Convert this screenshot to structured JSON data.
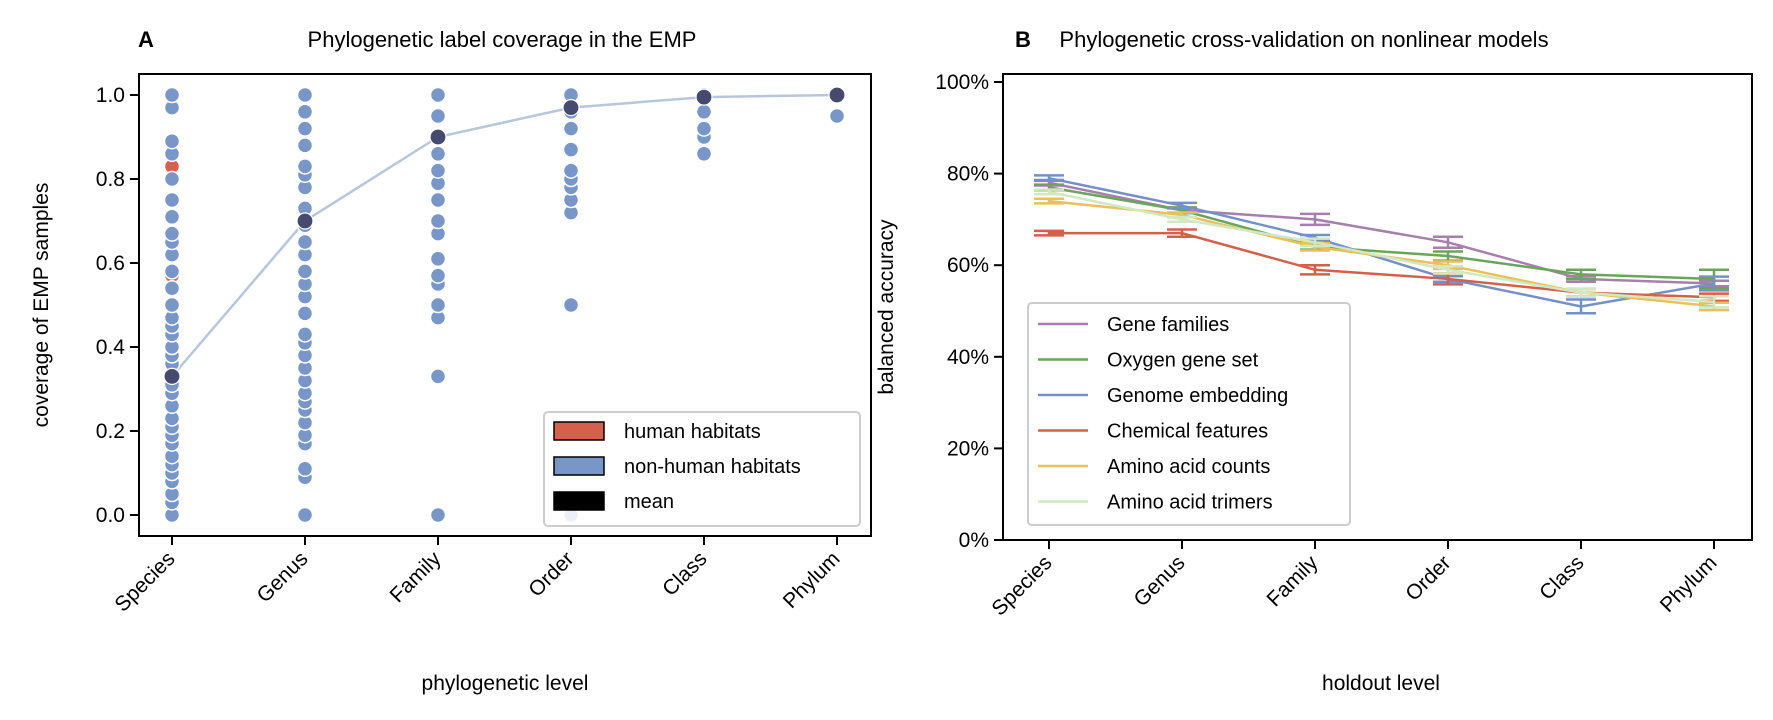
{
  "chart_data": [
    {
      "panel": "A",
      "type": "scatter",
      "title": "Phylogenetic label coverage in the EMP",
      "xlabel": "phylogenetic level",
      "ylabel": "coverage of EMP samples",
      "categories": [
        "Species",
        "Genus",
        "Family",
        "Order",
        "Class",
        "Phylum"
      ],
      "ylim": [
        -0.05,
        1.05
      ],
      "yticks": [
        0.0,
        0.2,
        0.4,
        0.6,
        0.8,
        1.0
      ],
      "ytick_labels": [
        "0.0",
        "0.2",
        "0.4",
        "0.6",
        "0.8",
        "1.0"
      ],
      "legend": {
        "position": "lower-right",
        "entries": [
          {
            "label": "human habitats",
            "color": "#d6604d"
          },
          {
            "label": "non-human habitats",
            "color": "#7896c8"
          },
          {
            "label": "mean",
            "color": "#000000"
          }
        ]
      },
      "colors": {
        "human": "#d6604d",
        "nonhuman": "#7896c8",
        "mean_point": "#454a6e",
        "mean_line": "#b8c6dd"
      },
      "human_points": [
        {
          "category": "Species",
          "values": [
            0.57,
            0.83
          ]
        }
      ],
      "nonhuman_points": [
        {
          "category": "Species",
          "values": [
            0.0,
            0.03,
            0.05,
            0.08,
            0.1,
            0.12,
            0.14,
            0.17,
            0.19,
            0.21,
            0.23,
            0.26,
            0.29,
            0.31,
            0.33,
            0.36,
            0.38,
            0.4,
            0.43,
            0.45,
            0.47,
            0.5,
            0.54,
            0.58,
            0.62,
            0.65,
            0.67,
            0.71,
            0.75,
            0.8,
            0.86,
            0.89,
            0.97,
            1.0
          ]
        },
        {
          "category": "Genus",
          "values": [
            0.0,
            0.09,
            0.11,
            0.17,
            0.19,
            0.22,
            0.25,
            0.27,
            0.29,
            0.32,
            0.35,
            0.38,
            0.41,
            0.43,
            0.48,
            0.52,
            0.55,
            0.58,
            0.62,
            0.65,
            0.69,
            0.73,
            0.78,
            0.81,
            0.83,
            0.88,
            0.92,
            0.96,
            1.0
          ]
        },
        {
          "category": "Family",
          "values": [
            0.0,
            0.33,
            0.47,
            0.5,
            0.55,
            0.57,
            0.61,
            0.67,
            0.7,
            0.75,
            0.79,
            0.82,
            0.86,
            0.9,
            0.95,
            1.0
          ]
        },
        {
          "category": "Order",
          "values": [
            0.0,
            0.5,
            0.72,
            0.75,
            0.78,
            0.8,
            0.82,
            0.87,
            0.92,
            0.96,
            1.0
          ]
        },
        {
          "category": "Class",
          "values": [
            0.86,
            0.9,
            0.92,
            0.96,
            1.0
          ]
        },
        {
          "category": "Phylum",
          "values": [
            0.95,
            1.0
          ]
        }
      ],
      "mean": [
        0.33,
        0.7,
        0.9,
        0.97,
        0.995,
        1.0
      ]
    },
    {
      "panel": "B",
      "type": "line",
      "title": "Phylogenetic cross-validation on nonlinear models",
      "xlabel": "holdout level",
      "ylabel": "balanced accuracy",
      "categories": [
        "Species",
        "Genus",
        "Family",
        "Order",
        "Class",
        "Phylum"
      ],
      "ylim": [
        0,
        100
      ],
      "yticks": [
        0,
        20,
        40,
        60,
        80,
        100
      ],
      "ytick_labels": [
        "0%",
        "20%",
        "40%",
        "60%",
        "80%",
        "100%"
      ],
      "legend": {
        "position": "lower-left"
      },
      "series": [
        {
          "name": "Gene families",
          "color": "#a67fad",
          "values": [
            78,
            72,
            70,
            65,
            57,
            56
          ],
          "errors": [
            0.6,
            0.6,
            1.2,
            1.2,
            0.6,
            0.6
          ]
        },
        {
          "name": "Oxygen gene set",
          "color": "#6aa65a",
          "values": [
            77,
            72,
            64,
            62,
            58,
            57
          ],
          "errors": [
            0.6,
            0.6,
            0.6,
            1.0,
            1.0,
            2.0
          ]
        },
        {
          "name": "Genome embedding",
          "color": "#7391c8",
          "values": [
            79,
            73,
            66,
            57,
            51,
            56
          ],
          "errors": [
            0.6,
            0.6,
            0.6,
            0.6,
            1.5,
            1.5
          ]
        },
        {
          "name": "Chemical features",
          "color": "#d4604a",
          "values": [
            67,
            67,
            59,
            57,
            54,
            53
          ],
          "errors": [
            0.5,
            0.8,
            1.0,
            1.2,
            0.8,
            0.8
          ]
        },
        {
          "name": "Amino acid counts",
          "color": "#eabf5c",
          "values": [
            74,
            71,
            64,
            60,
            54,
            51
          ],
          "errors": [
            0.5,
            0.5,
            0.8,
            0.8,
            0.8,
            0.8
          ]
        },
        {
          "name": "Amino acid trimers",
          "color": "#d2e8c0",
          "values": [
            76,
            70,
            65,
            59,
            54,
            52
          ],
          "errors": [
            0.5,
            0.5,
            0.8,
            0.8,
            0.8,
            1.2
          ]
        }
      ]
    }
  ]
}
